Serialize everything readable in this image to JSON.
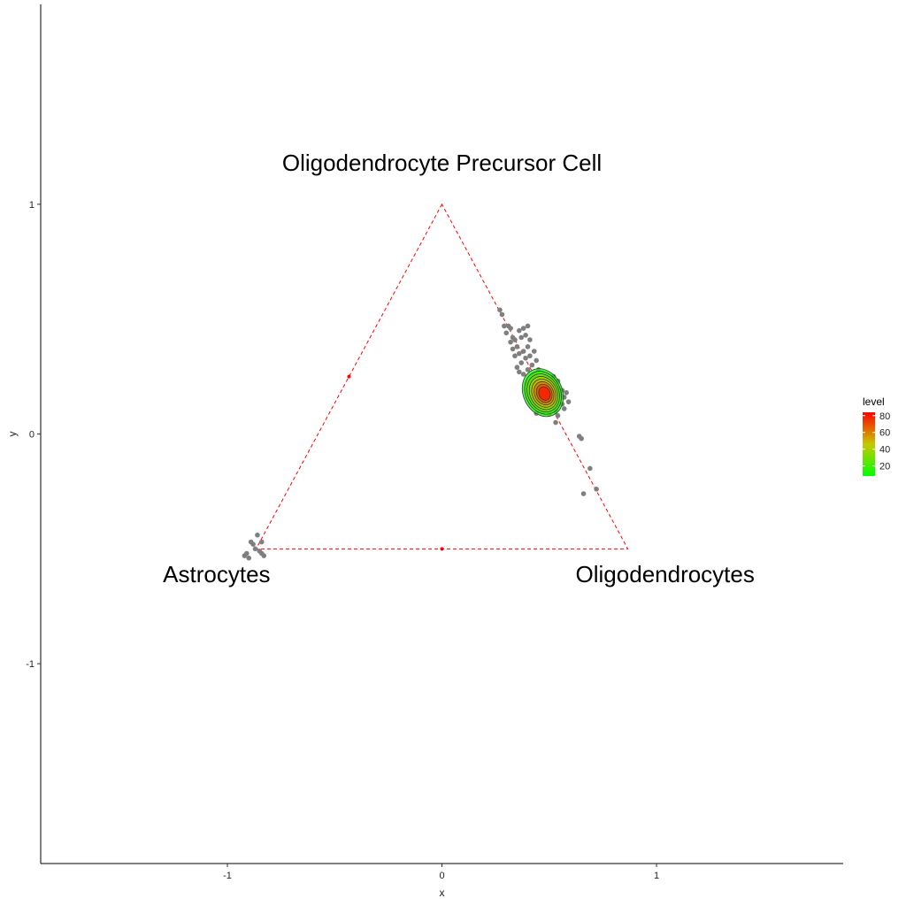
{
  "chart_data": {
    "type": "scatter",
    "title": "",
    "xlabel": "x",
    "ylabel": "y",
    "xlim": [
      -1.87,
      1.87
    ],
    "ylim": [
      -1.87,
      1.87
    ],
    "x_ticks": [
      {
        "value": -1,
        "label": "-1"
      },
      {
        "value": 0,
        "label": "0"
      },
      {
        "value": 1,
        "label": "1"
      }
    ],
    "y_ticks": [
      {
        "value": -1,
        "label": "-1"
      },
      {
        "value": 0,
        "label": "0"
      },
      {
        "value": 1,
        "label": "1"
      }
    ],
    "grid": false,
    "triangle": {
      "vertices": [
        [
          0,
          1
        ],
        [
          -0.866,
          -0.5
        ],
        [
          0.866,
          -0.5
        ]
      ],
      "line_color": "#ff0000",
      "line_style": "dashed",
      "edge_midpoints": [
        [
          -0.433,
          0.25
        ],
        [
          0,
          -0.5
        ]
      ]
    },
    "vertex_labels": [
      {
        "text": "Oligodendrocyte Precursor Cell",
        "x": 0,
        "y": 1.18
      },
      {
        "text": "Astrocytes",
        "x": -1.05,
        "y": -0.61
      },
      {
        "text": "Oligodendrocytes",
        "x": 1.04,
        "y": -0.61
      }
    ],
    "points_color": "#7f7f7f",
    "points": [
      [
        0.27,
        0.54
      ],
      [
        0.28,
        0.52
      ],
      [
        0.29,
        0.47
      ],
      [
        0.31,
        0.47
      ],
      [
        0.3,
        0.44
      ],
      [
        0.32,
        0.46
      ],
      [
        0.33,
        0.42
      ],
      [
        0.32,
        0.4
      ],
      [
        0.34,
        0.41
      ],
      [
        0.36,
        0.45
      ],
      [
        0.38,
        0.46
      ],
      [
        0.4,
        0.47
      ],
      [
        0.39,
        0.43
      ],
      [
        0.37,
        0.42
      ],
      [
        0.35,
        0.38
      ],
      [
        0.33,
        0.37
      ],
      [
        0.34,
        0.34
      ],
      [
        0.36,
        0.35
      ],
      [
        0.38,
        0.36
      ],
      [
        0.4,
        0.38
      ],
      [
        0.41,
        0.41
      ],
      [
        0.39,
        0.33
      ],
      [
        0.37,
        0.31
      ],
      [
        0.35,
        0.29
      ],
      [
        0.36,
        0.27
      ],
      [
        0.38,
        0.26
      ],
      [
        0.4,
        0.28
      ],
      [
        0.42,
        0.3
      ],
      [
        0.41,
        0.34
      ],
      [
        0.43,
        0.36
      ],
      [
        0.44,
        0.32
      ],
      [
        0.45,
        0.28
      ],
      [
        0.43,
        0.26
      ],
      [
        0.42,
        0.23
      ],
      [
        0.44,
        0.21
      ],
      [
        0.46,
        0.24
      ],
      [
        0.48,
        0.22
      ],
      [
        0.47,
        0.19
      ],
      [
        0.45,
        0.17
      ],
      [
        0.43,
        0.19
      ],
      [
        0.44,
        0.15
      ],
      [
        0.46,
        0.13
      ],
      [
        0.48,
        0.14
      ],
      [
        0.5,
        0.16
      ],
      [
        0.52,
        0.18
      ],
      [
        0.54,
        0.2
      ],
      [
        0.55,
        0.17
      ],
      [
        0.53,
        0.14
      ],
      [
        0.51,
        0.12
      ],
      [
        0.49,
        0.11
      ],
      [
        0.47,
        0.1
      ],
      [
        0.5,
        0.09
      ],
      [
        0.53,
        0.1
      ],
      [
        0.56,
        0.13
      ],
      [
        0.57,
        0.16
      ],
      [
        0.56,
        0.19
      ],
      [
        0.54,
        0.23
      ],
      [
        0.52,
        0.25
      ],
      [
        0.5,
        0.22
      ],
      [
        0.48,
        0.2
      ],
      [
        0.44,
        0.09
      ],
      [
        0.45,
        0.12
      ],
      [
        0.57,
        0.11
      ],
      [
        0.54,
        0.08
      ],
      [
        0.58,
        0.18
      ],
      [
        0.59,
        0.14
      ],
      [
        0.42,
        0.2
      ],
      [
        0.4,
        0.22
      ],
      [
        0.53,
        0.05
      ],
      [
        0.64,
        -0.01
      ],
      [
        0.65,
        -0.02
      ],
      [
        0.69,
        -0.15
      ],
      [
        0.66,
        -0.26
      ],
      [
        0.72,
        -0.24
      ],
      [
        -0.92,
        -0.53
      ],
      [
        -0.91,
        -0.52
      ],
      [
        -0.9,
        -0.54
      ],
      [
        -0.88,
        -0.48
      ],
      [
        -0.87,
        -0.5
      ],
      [
        -0.86,
        -0.44
      ],
      [
        -0.85,
        -0.51
      ],
      [
        -0.84,
        -0.47
      ],
      [
        -0.84,
        -0.52
      ],
      [
        -0.83,
        -0.53
      ],
      [
        -0.89,
        -0.47
      ]
    ],
    "density_center": [
      0.47,
      0.18
    ],
    "density_levels": [
      10,
      20,
      30,
      40,
      50,
      60,
      70,
      80
    ],
    "legend": {
      "title": "level",
      "position": "right",
      "ticks": [
        20,
        40,
        60,
        80
      ],
      "range": [
        8,
        84
      ],
      "low_color": "#00ff00",
      "mid_color": "#c8c800",
      "high_color": "#ff0000"
    }
  }
}
